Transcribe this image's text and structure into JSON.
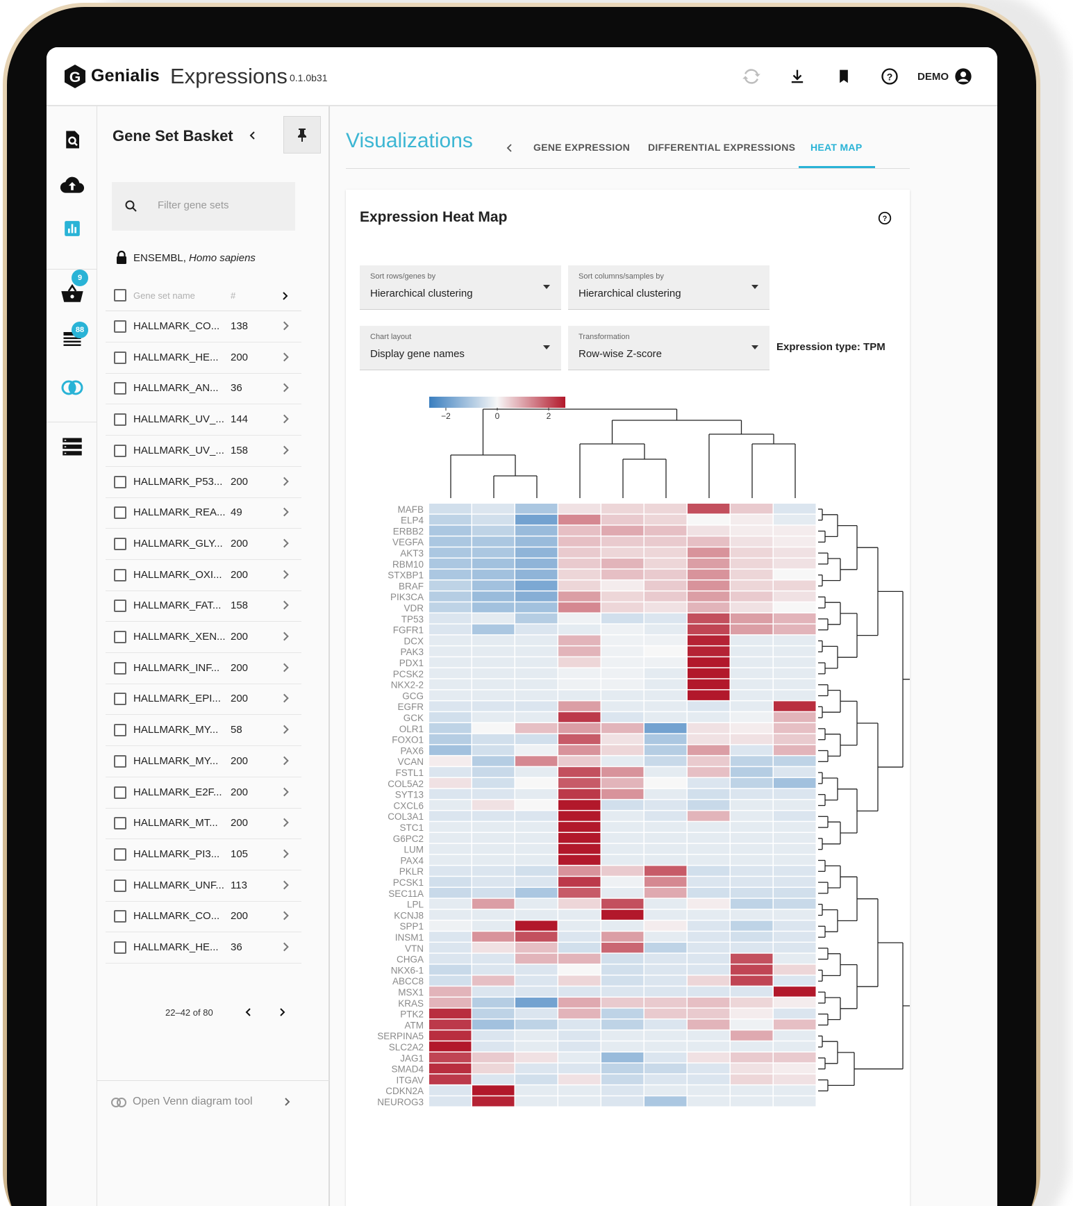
{
  "app": {
    "brand": "Genialis",
    "name": "Expressions",
    "version": "0.1.0b31",
    "user": "DEMO"
  },
  "rail": {
    "basket_badge": "9",
    "list_badge": "88"
  },
  "basket": {
    "title": "Gene Set Basket",
    "filter_placeholder": "Filter gene sets",
    "species_source": "ENSEMBL,",
    "species_name": "Homo sapiens",
    "col_name": "Gene set name",
    "col_count": "#",
    "rows": [
      {
        "name": "HALLMARK_CO...",
        "count": "138"
      },
      {
        "name": "HALLMARK_HE...",
        "count": "200"
      },
      {
        "name": "HALLMARK_AN...",
        "count": "36"
      },
      {
        "name": "HALLMARK_UV_...",
        "count": "144"
      },
      {
        "name": "HALLMARK_UV_...",
        "count": "158"
      },
      {
        "name": "HALLMARK_P53...",
        "count": "200"
      },
      {
        "name": "HALLMARK_REA...",
        "count": "49"
      },
      {
        "name": "HALLMARK_GLY...",
        "count": "200"
      },
      {
        "name": "HALLMARK_OXI...",
        "count": "200"
      },
      {
        "name": "HALLMARK_FAT...",
        "count": "158"
      },
      {
        "name": "HALLMARK_XEN...",
        "count": "200"
      },
      {
        "name": "HALLMARK_INF...",
        "count": "200"
      },
      {
        "name": "HALLMARK_EPI...",
        "count": "200"
      },
      {
        "name": "HALLMARK_MY...",
        "count": "58"
      },
      {
        "name": "HALLMARK_MY...",
        "count": "200"
      },
      {
        "name": "HALLMARK_E2F...",
        "count": "200"
      },
      {
        "name": "HALLMARK_MT...",
        "count": "200"
      },
      {
        "name": "HALLMARK_PI3...",
        "count": "105"
      },
      {
        "name": "HALLMARK_UNF...",
        "count": "113"
      },
      {
        "name": "HALLMARK_CO...",
        "count": "200"
      },
      {
        "name": "HALLMARK_HE...",
        "count": "36"
      }
    ],
    "pager": "22–42 of 80",
    "venn_label": "Open Venn diagram tool"
  },
  "main": {
    "title": "Visualizations",
    "tabs": [
      {
        "label": "GENE EXPRESSION"
      },
      {
        "label": "DIFFERENTIAL EXPRESSIONS"
      },
      {
        "label": "HEAT MAP"
      }
    ],
    "active_tab": "HEAT MAP",
    "card_title": "Expression Heat Map",
    "sort_rows": {
      "label": "Sort rows/genes by",
      "value": "Hierarchical clustering"
    },
    "sort_cols": {
      "label": "Sort columns/samples by",
      "value": "Hierarchical clustering"
    },
    "layout": {
      "label": "Chart layout",
      "value": "Display gene names"
    },
    "transform": {
      "label": "Transformation",
      "value": "Row-wise Z-score"
    },
    "expression_type": "Expression type: TPM"
  },
  "colors": {
    "accent": "#29b3d6",
    "low": "#3a7ebf",
    "mid": "#f7f7f7",
    "high": "#b2182b"
  },
  "chart_data": {
    "type": "heatmap",
    "colorbar": {
      "min": -2,
      "max": 2,
      "ticks": [
        "−2",
        "0",
        "2"
      ]
    },
    "genes": [
      "MAFB",
      "ELP4",
      "ERBB2",
      "VEGFA",
      "AKT3",
      "RBM10",
      "STXBP1",
      "BRAF",
      "PIK3CA",
      "VDR",
      "TP53",
      "FGFR1",
      "DCX",
      "PAK3",
      "PDX1",
      "PCSK2",
      "NKX2-2",
      "GCG",
      "EGFR",
      "GCK",
      "OLR1",
      "FOXO1",
      "PAX6",
      "VCAN",
      "FSTL1",
      "COL5A2",
      "SYT13",
      "CXCL6",
      "COL3A1",
      "STC1",
      "G6PC2",
      "LUM",
      "PAX4",
      "PKLR",
      "PCSK1",
      "SEC11A",
      "LPL",
      "KCNJ8",
      "SPP1",
      "INSM1",
      "VTN",
      "CHGA",
      "NKX6-1",
      "ABCC8",
      "MSX1",
      "KRAS",
      "PTK2",
      "ATM",
      "SERPINA5",
      "SLC2A2",
      "JAG1",
      "SMAD4",
      "ITGAV",
      "CDKN2A",
      "NEUROG3"
    ],
    "n_samples": 9,
    "values": [
      [
        -0.4,
        -0.3,
        -0.8,
        0.2,
        0.3,
        0.3,
        1.5,
        0.4,
        -0.3
      ],
      [
        -0.6,
        -0.4,
        -1.4,
        1.0,
        0.4,
        0.3,
        0.0,
        0.1,
        -0.2
      ],
      [
        -0.8,
        -0.6,
        -1.0,
        0.5,
        0.7,
        0.5,
        0.2,
        0.1,
        0.1
      ],
      [
        -0.8,
        -0.8,
        -1.0,
        0.5,
        0.4,
        0.4,
        0.5,
        0.2,
        0.1
      ],
      [
        -0.8,
        -0.8,
        -1.1,
        0.4,
        0.3,
        0.3,
        0.9,
        0.3,
        0.2
      ],
      [
        -0.8,
        -0.9,
        -1.1,
        0.4,
        0.6,
        0.3,
        0.8,
        0.3,
        0.2
      ],
      [
        -0.8,
        -0.9,
        -1.1,
        0.3,
        0.5,
        0.4,
        0.9,
        0.3,
        0.0
      ],
      [
        -0.6,
        -0.9,
        -1.3,
        0.3,
        0.1,
        0.4,
        0.9,
        0.3,
        0.3
      ],
      [
        -0.7,
        -1.0,
        -1.2,
        0.8,
        0.3,
        0.4,
        0.8,
        0.4,
        0.2
      ],
      [
        -0.6,
        -0.9,
        -0.9,
        1.0,
        0.3,
        0.2,
        0.6,
        0.2,
        0.0
      ],
      [
        -0.3,
        -0.2,
        -0.7,
        -0.1,
        -0.4,
        -0.3,
        1.5,
        0.8,
        0.6
      ],
      [
        -0.3,
        -0.8,
        -0.3,
        -0.2,
        -0.1,
        -0.2,
        1.6,
        0.8,
        0.6
      ],
      [
        -0.2,
        -0.2,
        -0.2,
        0.6,
        -0.1,
        -0.1,
        1.9,
        -0.2,
        -0.2
      ],
      [
        -0.2,
        -0.2,
        -0.2,
        0.6,
        -0.1,
        0.0,
        1.9,
        -0.2,
        -0.2
      ],
      [
        -0.2,
        -0.2,
        -0.2,
        0.3,
        -0.1,
        -0.1,
        2.1,
        -0.2,
        -0.2
      ],
      [
        -0.2,
        -0.2,
        -0.2,
        -0.1,
        -0.1,
        -0.2,
        2.1,
        -0.2,
        -0.2
      ],
      [
        -0.2,
        -0.2,
        -0.2,
        -0.1,
        -0.1,
        -0.2,
        2.1,
        -0.2,
        -0.2
      ],
      [
        -0.2,
        -0.2,
        -0.2,
        -0.2,
        -0.2,
        -0.2,
        2.3,
        -0.2,
        -0.2
      ],
      [
        -0.3,
        -0.3,
        -0.3,
        0.8,
        -0.2,
        -0.2,
        -0.3,
        -0.2,
        1.8
      ],
      [
        -0.4,
        -0.2,
        -0.2,
        1.7,
        -0.3,
        -0.2,
        -0.2,
        -0.1,
        0.6
      ],
      [
        -0.6,
        0.0,
        0.5,
        0.8,
        0.6,
        -1.4,
        0.2,
        0.1,
        0.5
      ],
      [
        -0.7,
        -0.4,
        -0.4,
        1.4,
        0.2,
        -0.8,
        0.2,
        0.2,
        0.4
      ],
      [
        -0.9,
        -0.4,
        -0.1,
        0.9,
        0.3,
        -0.7,
        0.8,
        -0.3,
        0.6
      ],
      [
        0.1,
        -0.7,
        1.0,
        0.4,
        -0.2,
        -0.5,
        0.4,
        -0.6,
        -0.6
      ],
      [
        -0.3,
        -0.5,
        -0.2,
        1.5,
        0.9,
        -0.2,
        0.5,
        -0.7,
        -0.3
      ],
      [
        0.2,
        -0.4,
        0.0,
        1.4,
        0.6,
        0.0,
        -0.3,
        -0.6,
        -0.9
      ],
      [
        -0.3,
        -0.3,
        -0.2,
        1.7,
        0.9,
        -0.2,
        -0.4,
        -0.3,
        -0.3
      ],
      [
        -0.2,
        0.2,
        0.0,
        2.0,
        -0.4,
        -0.3,
        -0.5,
        -0.2,
        -0.2
      ],
      [
        -0.3,
        -0.3,
        -0.3,
        2.1,
        -0.2,
        -0.3,
        0.6,
        -0.2,
        -0.3
      ],
      [
        -0.2,
        -0.2,
        -0.2,
        2.2,
        -0.2,
        -0.2,
        -0.2,
        -0.2,
        -0.2
      ],
      [
        -0.2,
        -0.2,
        -0.2,
        2.2,
        -0.2,
        -0.2,
        -0.2,
        -0.2,
        -0.2
      ],
      [
        -0.2,
        -0.2,
        -0.2,
        2.2,
        -0.2,
        -0.2,
        -0.2,
        -0.2,
        -0.2
      ],
      [
        -0.2,
        -0.2,
        -0.2,
        2.3,
        -0.2,
        -0.2,
        -0.2,
        -0.2,
        -0.2
      ],
      [
        -0.3,
        -0.3,
        -0.4,
        0.9,
        0.4,
        1.4,
        -0.4,
        -0.3,
        -0.3
      ],
      [
        -0.4,
        -0.3,
        -0.3,
        1.7,
        -0.1,
        1.0,
        -0.3,
        -0.3,
        -0.3
      ],
      [
        -0.5,
        -0.4,
        -0.8,
        1.4,
        -0.2,
        0.7,
        -0.4,
        -0.4,
        -0.4
      ],
      [
        -0.2,
        0.8,
        -0.2,
        0.3,
        1.5,
        -0.2,
        0.1,
        -0.6,
        -0.5
      ],
      [
        -0.2,
        -0.2,
        -0.2,
        -0.2,
        2.3,
        -0.2,
        -0.2,
        -0.2,
        -0.2
      ],
      [
        -0.1,
        -0.2,
        2.1,
        -0.2,
        -0.2,
        0.1,
        -0.3,
        -0.6,
        -0.3
      ],
      [
        -0.3,
        0.9,
        1.5,
        -0.3,
        0.8,
        -0.2,
        -0.3,
        -0.4,
        -0.3
      ],
      [
        -0.3,
        0.2,
        0.5,
        -0.4,
        1.3,
        -0.6,
        -0.3,
        -0.3,
        -0.3
      ],
      [
        -0.3,
        -0.3,
        0.6,
        0.6,
        -0.4,
        -0.3,
        -0.3,
        1.5,
        -0.2
      ],
      [
        -0.5,
        -0.3,
        -0.3,
        0.0,
        -0.4,
        -0.3,
        -0.3,
        1.6,
        0.3
      ],
      [
        -0.4,
        0.5,
        -0.3,
        0.3,
        -0.4,
        -0.3,
        0.3,
        1.6,
        -0.3
      ],
      [
        0.6,
        -0.3,
        -0.3,
        -0.3,
        -0.3,
        -0.3,
        -0.3,
        -0.3,
        2.0
      ],
      [
        0.6,
        -0.7,
        -1.4,
        0.7,
        0.4,
        0.4,
        0.5,
        0.3,
        0.1
      ],
      [
        1.8,
        -0.6,
        -0.3,
        0.6,
        -0.6,
        0.4,
        0.4,
        0.1,
        -0.3
      ],
      [
        1.7,
        -0.9,
        -0.6,
        -0.3,
        -0.6,
        -0.3,
        0.6,
        -0.1,
        0.5
      ],
      [
        1.8,
        -0.3,
        -0.2,
        -0.3,
        -0.2,
        -0.2,
        -0.2,
        0.7,
        -0.2
      ],
      [
        2.3,
        -0.3,
        -0.2,
        -0.3,
        -0.2,
        -0.2,
        -0.2,
        -0.2,
        -0.2
      ],
      [
        1.6,
        0.4,
        0.2,
        -0.2,
        -1.0,
        -0.3,
        0.2,
        0.4,
        0.4
      ],
      [
        1.8,
        0.3,
        -0.3,
        -0.3,
        -0.6,
        -0.5,
        -0.3,
        0.2,
        0.1
      ],
      [
        1.7,
        -0.3,
        -0.4,
        0.2,
        -0.5,
        -0.3,
        -0.3,
        0.3,
        0.2
      ],
      [
        -0.3,
        2.1,
        -0.2,
        -0.2,
        -0.3,
        -0.2,
        -0.2,
        -0.2,
        -0.2
      ],
      [
        -0.3,
        1.9,
        -0.2,
        -0.2,
        -0.3,
        -0.8,
        -0.2,
        -0.2,
        -0.2
      ]
    ]
  }
}
